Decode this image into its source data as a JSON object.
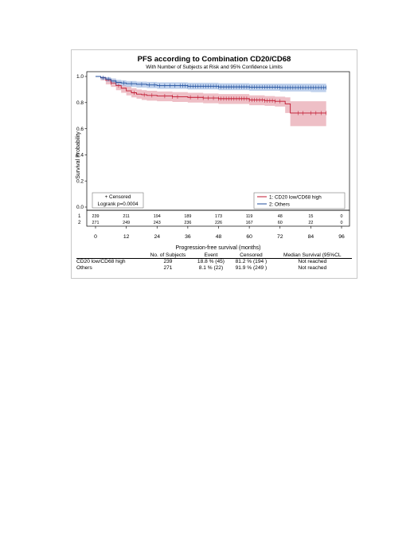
{
  "chart_data": {
    "type": "line",
    "title": "PFS according to Combination CD20/CD68",
    "subtitle": "With Number of Subjects at Risk and 95% Confidence Limits",
    "xlabel": "Progression-free survival (months)",
    "ylabel": "Survival Probability",
    "xlim": [
      0,
      96
    ],
    "ylim": [
      0,
      1.0
    ],
    "x_ticks": [
      "0",
      "12",
      "24",
      "36",
      "48",
      "60",
      "72",
      "84",
      "96"
    ],
    "y_ticks": [
      "0.0",
      "0.2",
      "0.4",
      "0.6",
      "0.8",
      "1.0"
    ],
    "series": [
      {
        "name": "1: CD20 low/CD68 high",
        "color": "#c0172f",
        "band_color": "#e8a9b3",
        "x": [
          0,
          2,
          4,
          6,
          8,
          10,
          12,
          14,
          16,
          18,
          20,
          24,
          30,
          36,
          42,
          48,
          60,
          66,
          70,
          72,
          74,
          76,
          78,
          84,
          90
        ],
        "y": [
          1.0,
          0.99,
          0.97,
          0.95,
          0.93,
          0.91,
          0.89,
          0.875,
          0.865,
          0.86,
          0.855,
          0.85,
          0.845,
          0.84,
          0.835,
          0.83,
          0.82,
          0.815,
          0.81,
          0.81,
          0.79,
          0.72,
          0.72,
          0.72,
          0.72
        ],
        "lower": [
          1.0,
          0.97,
          0.94,
          0.92,
          0.895,
          0.875,
          0.855,
          0.84,
          0.83,
          0.82,
          0.815,
          0.81,
          0.805,
          0.8,
          0.795,
          0.79,
          0.78,
          0.775,
          0.77,
          0.77,
          0.72,
          0.62,
          0.62,
          0.62,
          0.62
        ],
        "upper": [
          1.0,
          1.0,
          0.99,
          0.98,
          0.96,
          0.94,
          0.925,
          0.91,
          0.9,
          0.895,
          0.89,
          0.885,
          0.88,
          0.875,
          0.87,
          0.865,
          0.855,
          0.85,
          0.845,
          0.845,
          0.84,
          0.81,
          0.81,
          0.81,
          0.81
        ],
        "censored_x": [
          6,
          9,
          15,
          19,
          22,
          27,
          30,
          32,
          37,
          40,
          42,
          44,
          46,
          48,
          49,
          50,
          51,
          52,
          53,
          54,
          55,
          56,
          57,
          58,
          59,
          60,
          61,
          62,
          63,
          64,
          65,
          66,
          67,
          68,
          69,
          70,
          72,
          79,
          81,
          84,
          86,
          88,
          90
        ]
      },
      {
        "name": "2: Others",
        "color": "#1f4e9c",
        "band_color": "#a9c1e6",
        "x": [
          0,
          2,
          4,
          6,
          8,
          10,
          12,
          16,
          20,
          24,
          36,
          48,
          60,
          72,
          84,
          90
        ],
        "y": [
          1.0,
          0.99,
          0.98,
          0.965,
          0.955,
          0.95,
          0.945,
          0.94,
          0.935,
          0.93,
          0.925,
          0.92,
          0.918,
          0.915,
          0.915,
          0.915
        ],
        "lower": [
          1.0,
          0.975,
          0.96,
          0.945,
          0.93,
          0.925,
          0.92,
          0.915,
          0.91,
          0.905,
          0.9,
          0.895,
          0.89,
          0.885,
          0.88,
          0.88
        ],
        "upper": [
          1.0,
          1.0,
          0.995,
          0.985,
          0.975,
          0.97,
          0.965,
          0.96,
          0.958,
          0.955,
          0.952,
          0.948,
          0.945,
          0.945,
          0.945,
          0.945
        ],
        "censored_x": [
          3,
          5,
          8,
          11,
          14,
          18,
          21,
          23,
          25,
          27,
          29,
          31,
          33,
          34,
          35,
          36,
          37,
          38,
          39,
          40,
          41,
          42,
          43,
          44,
          45,
          46,
          47,
          48,
          49,
          50,
          51,
          52,
          53,
          54,
          55,
          56,
          57,
          58,
          59,
          60,
          61,
          62,
          63,
          64,
          65,
          66,
          67,
          68,
          69,
          70,
          71,
          72,
          73,
          74,
          75,
          76,
          77,
          78,
          79,
          80,
          81,
          82,
          83,
          84,
          85,
          86,
          87,
          88,
          89,
          90
        ]
      }
    ],
    "legend_left": {
      "censored": "+ Censored",
      "logrank": "Logrank p=0.0004"
    },
    "legend_right": [
      "1: CD20 low/CD68 high",
      "2: Others"
    ],
    "at_risk": [
      {
        "label": "1",
        "values": [
          "239",
          "211",
          "194",
          "189",
          "173",
          "119",
          "48",
          "15",
          "0"
        ]
      },
      {
        "label": "2",
        "values": [
          "271",
          "249",
          "243",
          "236",
          "226",
          "167",
          "60",
          "22",
          "0"
        ]
      }
    ]
  },
  "table": {
    "headers": [
      "",
      "No. of Subjects",
      "Event",
      "Censored",
      "Median Survival (95%CL"
    ],
    "rows": [
      [
        "CD20 low/CD68 high",
        "239",
        "18.8 % (45)",
        "81.2 % (194 )",
        "Not reached"
      ],
      [
        "Others",
        "271",
        "8.1 % (22)",
        "91.9 % (249 )",
        "Not reached"
      ]
    ]
  }
}
